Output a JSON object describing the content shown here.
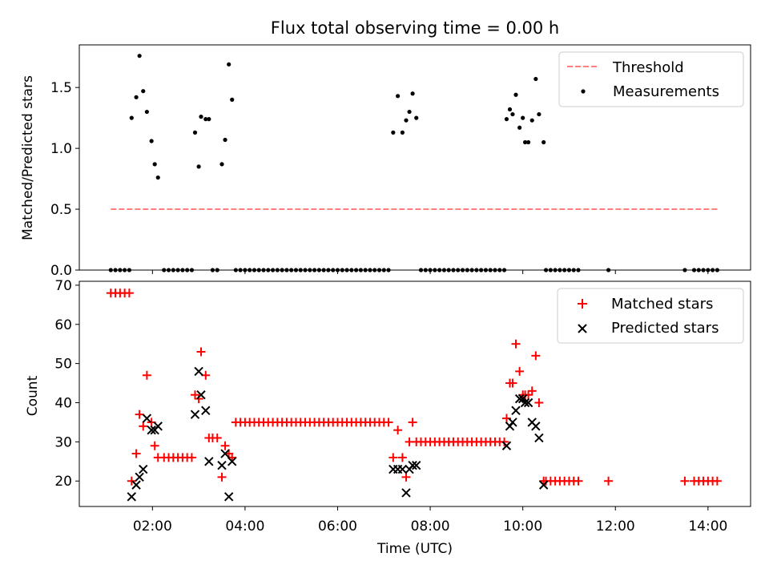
{
  "chart_data": [
    {
      "type": "scatter",
      "title": "Flux total observing time = 0.00 h",
      "ylabel": "Matched/Predicted stars",
      "xlim_hours": [
        0.42,
        14.92
      ],
      "ylim": [
        0,
        1.85
      ],
      "yticks": [
        0.0,
        0.5,
        1.0,
        1.5
      ],
      "yticklabels": [
        "0.0",
        "0.5",
        "1.0",
        "1.5"
      ],
      "legend_position": "top-right",
      "legend": {
        "threshold": "Threshold",
        "measurements": "Measurements"
      },
      "threshold": {
        "name": "Threshold",
        "color": "#ff8080",
        "x": [
          1.1,
          14.2
        ],
        "y": 0.5
      },
      "measurements": {
        "name": "Measurements",
        "color": "#000000",
        "points": [
          [
            1.1,
            0
          ],
          [
            1.2,
            0
          ],
          [
            1.3,
            0
          ],
          [
            1.4,
            0
          ],
          [
            1.5,
            0
          ],
          [
            1.55,
            1.25
          ],
          [
            1.65,
            1.42
          ],
          [
            1.72,
            1.76
          ],
          [
            1.8,
            1.47
          ],
          [
            1.88,
            1.3
          ],
          [
            1.98,
            1.06
          ],
          [
            2.05,
            0.87
          ],
          [
            2.12,
            0.76
          ],
          [
            2.25,
            0
          ],
          [
            2.35,
            0
          ],
          [
            2.45,
            0
          ],
          [
            2.55,
            0
          ],
          [
            2.65,
            0
          ],
          [
            2.75,
            0
          ],
          [
            2.85,
            0
          ],
          [
            2.92,
            1.13
          ],
          [
            3.0,
            0.85
          ],
          [
            3.05,
            1.26
          ],
          [
            3.15,
            1.24
          ],
          [
            3.22,
            1.24
          ],
          [
            3.3,
            0
          ],
          [
            3.4,
            0
          ],
          [
            3.5,
            0.87
          ],
          [
            3.57,
            1.07
          ],
          [
            3.65,
            1.69
          ],
          [
            3.72,
            1.4
          ],
          [
            3.8,
            0
          ],
          [
            3.9,
            0
          ],
          [
            4.0,
            0
          ],
          [
            4.1,
            0
          ],
          [
            4.2,
            0
          ],
          [
            4.3,
            0
          ],
          [
            4.4,
            0
          ],
          [
            4.5,
            0
          ],
          [
            4.6,
            0
          ],
          [
            4.7,
            0
          ],
          [
            4.8,
            0
          ],
          [
            4.9,
            0
          ],
          [
            5.0,
            0
          ],
          [
            5.1,
            0
          ],
          [
            5.2,
            0
          ],
          [
            5.3,
            0
          ],
          [
            5.4,
            0
          ],
          [
            5.5,
            0
          ],
          [
            5.6,
            0
          ],
          [
            5.7,
            0
          ],
          [
            5.8,
            0
          ],
          [
            5.9,
            0
          ],
          [
            6.0,
            0
          ],
          [
            6.1,
            0
          ],
          [
            6.2,
            0
          ],
          [
            6.3,
            0
          ],
          [
            6.4,
            0
          ],
          [
            6.5,
            0
          ],
          [
            6.6,
            0
          ],
          [
            6.7,
            0
          ],
          [
            6.8,
            0
          ],
          [
            6.9,
            0
          ],
          [
            7.0,
            0
          ],
          [
            7.1,
            0
          ],
          [
            7.2,
            1.13
          ],
          [
            7.3,
            1.43
          ],
          [
            7.4,
            1.13
          ],
          [
            7.48,
            1.23
          ],
          [
            7.55,
            1.3
          ],
          [
            7.62,
            1.45
          ],
          [
            7.7,
            1.25
          ],
          [
            7.8,
            0
          ],
          [
            7.9,
            0
          ],
          [
            8.0,
            0
          ],
          [
            8.1,
            0
          ],
          [
            8.2,
            0
          ],
          [
            8.3,
            0
          ],
          [
            8.4,
            0
          ],
          [
            8.5,
            0
          ],
          [
            8.6,
            0
          ],
          [
            8.7,
            0
          ],
          [
            8.8,
            0
          ],
          [
            8.9,
            0
          ],
          [
            9.0,
            0
          ],
          [
            9.1,
            0
          ],
          [
            9.2,
            0
          ],
          [
            9.3,
            0
          ],
          [
            9.4,
            0
          ],
          [
            9.5,
            0
          ],
          [
            9.6,
            0
          ],
          [
            9.65,
            1.24
          ],
          [
            9.72,
            1.32
          ],
          [
            9.78,
            1.28
          ],
          [
            9.85,
            1.44
          ],
          [
            9.93,
            1.17
          ],
          [
            10.0,
            1.25
          ],
          [
            10.05,
            1.05
          ],
          [
            10.12,
            1.05
          ],
          [
            10.2,
            1.23
          ],
          [
            10.28,
            1.57
          ],
          [
            10.35,
            1.28
          ],
          [
            10.45,
            1.05
          ],
          [
            10.5,
            0
          ],
          [
            10.6,
            0
          ],
          [
            10.7,
            0
          ],
          [
            10.8,
            0
          ],
          [
            10.9,
            0
          ],
          [
            11.0,
            0
          ],
          [
            11.1,
            0
          ],
          [
            11.2,
            0
          ],
          [
            11.85,
            0
          ],
          [
            13.5,
            0
          ],
          [
            13.7,
            0
          ],
          [
            13.8,
            0
          ],
          [
            13.9,
            0
          ],
          [
            14.0,
            0
          ],
          [
            14.1,
            0
          ],
          [
            14.2,
            0
          ]
        ]
      }
    },
    {
      "type": "scatter",
      "xlabel": "Time (UTC)",
      "ylabel": "Count",
      "xlim_hours": [
        0.42,
        14.92
      ],
      "ylim": [
        13.5,
        71
      ],
      "yticks": [
        20,
        30,
        40,
        50,
        60,
        70
      ],
      "yticklabels": [
        "20",
        "30",
        "40",
        "50",
        "60",
        "70"
      ],
      "xticks_hours": [
        2,
        4,
        6,
        8,
        10,
        12,
        14
      ],
      "xticklabels": [
        "02:00",
        "04:00",
        "06:00",
        "08:00",
        "10:00",
        "12:00",
        "14:00"
      ],
      "legend_position": "top-right",
      "legend": {
        "matched": "Matched stars",
        "predicted": "Predicted stars"
      },
      "matched": {
        "name": "Matched stars",
        "color": "#ff0000",
        "points": [
          [
            1.1,
            68
          ],
          [
            1.2,
            68
          ],
          [
            1.3,
            68
          ],
          [
            1.4,
            68
          ],
          [
            1.5,
            68
          ],
          [
            1.55,
            20
          ],
          [
            1.65,
            27
          ],
          [
            1.72,
            37
          ],
          [
            1.8,
            34
          ],
          [
            1.88,
            47
          ],
          [
            1.98,
            35
          ],
          [
            2.05,
            29
          ],
          [
            2.12,
            26
          ],
          [
            2.25,
            26
          ],
          [
            2.35,
            26
          ],
          [
            2.45,
            26
          ],
          [
            2.55,
            26
          ],
          [
            2.65,
            26
          ],
          [
            2.75,
            26
          ],
          [
            2.85,
            26
          ],
          [
            2.92,
            42
          ],
          [
            3.0,
            41
          ],
          [
            3.05,
            53
          ],
          [
            3.15,
            47
          ],
          [
            3.22,
            31
          ],
          [
            3.3,
            31
          ],
          [
            3.4,
            31
          ],
          [
            3.5,
            21
          ],
          [
            3.57,
            29
          ],
          [
            3.65,
            27
          ],
          [
            3.72,
            26
          ],
          [
            3.8,
            35
          ],
          [
            3.9,
            35
          ],
          [
            4.0,
            35
          ],
          [
            4.1,
            35
          ],
          [
            4.2,
            35
          ],
          [
            4.3,
            35
          ],
          [
            4.4,
            35
          ],
          [
            4.5,
            35
          ],
          [
            4.6,
            35
          ],
          [
            4.7,
            35
          ],
          [
            4.8,
            35
          ],
          [
            4.9,
            35
          ],
          [
            5.0,
            35
          ],
          [
            5.1,
            35
          ],
          [
            5.2,
            35
          ],
          [
            5.3,
            35
          ],
          [
            5.4,
            35
          ],
          [
            5.5,
            35
          ],
          [
            5.6,
            35
          ],
          [
            5.7,
            35
          ],
          [
            5.8,
            35
          ],
          [
            5.9,
            35
          ],
          [
            6.0,
            35
          ],
          [
            6.1,
            35
          ],
          [
            6.2,
            35
          ],
          [
            6.3,
            35
          ],
          [
            6.4,
            35
          ],
          [
            6.5,
            35
          ],
          [
            6.6,
            35
          ],
          [
            6.7,
            35
          ],
          [
            6.8,
            35
          ],
          [
            6.9,
            35
          ],
          [
            7.0,
            35
          ],
          [
            7.1,
            35
          ],
          [
            7.2,
            26
          ],
          [
            7.3,
            33
          ],
          [
            7.4,
            26
          ],
          [
            7.48,
            21
          ],
          [
            7.55,
            30
          ],
          [
            7.62,
            35
          ],
          [
            7.7,
            30
          ],
          [
            7.8,
            30
          ],
          [
            7.9,
            30
          ],
          [
            8.0,
            30
          ],
          [
            8.1,
            30
          ],
          [
            8.2,
            30
          ],
          [
            8.3,
            30
          ],
          [
            8.4,
            30
          ],
          [
            8.5,
            30
          ],
          [
            8.6,
            30
          ],
          [
            8.7,
            30
          ],
          [
            8.8,
            30
          ],
          [
            8.9,
            30
          ],
          [
            9.0,
            30
          ],
          [
            9.1,
            30
          ],
          [
            9.2,
            30
          ],
          [
            9.3,
            30
          ],
          [
            9.4,
            30
          ],
          [
            9.5,
            30
          ],
          [
            9.6,
            30
          ],
          [
            9.65,
            36
          ],
          [
            9.72,
            45
          ],
          [
            9.78,
            45
          ],
          [
            9.85,
            55
          ],
          [
            9.93,
            48
          ],
          [
            10.0,
            42
          ],
          [
            10.05,
            42
          ],
          [
            10.12,
            42
          ],
          [
            10.2,
            43
          ],
          [
            10.28,
            52
          ],
          [
            10.35,
            40
          ],
          [
            10.45,
            20
          ],
          [
            10.5,
            20
          ],
          [
            10.6,
            20
          ],
          [
            10.7,
            20
          ],
          [
            10.8,
            20
          ],
          [
            10.9,
            20
          ],
          [
            11.0,
            20
          ],
          [
            11.1,
            20
          ],
          [
            11.2,
            20
          ],
          [
            11.85,
            20
          ],
          [
            13.5,
            20
          ],
          [
            13.7,
            20
          ],
          [
            13.8,
            20
          ],
          [
            13.9,
            20
          ],
          [
            14.0,
            20
          ],
          [
            14.1,
            20
          ],
          [
            14.2,
            20
          ]
        ]
      },
      "predicted": {
        "name": "Predicted stars",
        "color": "#000000",
        "points": [
          [
            1.55,
            16
          ],
          [
            1.65,
            19
          ],
          [
            1.72,
            21
          ],
          [
            1.8,
            23
          ],
          [
            1.88,
            36
          ],
          [
            1.98,
            33
          ],
          [
            2.05,
            33
          ],
          [
            2.12,
            34
          ],
          [
            2.92,
            37
          ],
          [
            3.0,
            48
          ],
          [
            3.05,
            42
          ],
          [
            3.15,
            38
          ],
          [
            3.22,
            25
          ],
          [
            3.5,
            24
          ],
          [
            3.57,
            27
          ],
          [
            3.65,
            16
          ],
          [
            3.72,
            25
          ],
          [
            7.2,
            23
          ],
          [
            7.3,
            23
          ],
          [
            7.4,
            23
          ],
          [
            7.48,
            17
          ],
          [
            7.55,
            23
          ],
          [
            7.62,
            24
          ],
          [
            7.7,
            24
          ],
          [
            9.65,
            29
          ],
          [
            9.72,
            34
          ],
          [
            9.78,
            35
          ],
          [
            9.85,
            38
          ],
          [
            9.93,
            41
          ],
          [
            10.0,
            41
          ],
          [
            10.05,
            40
          ],
          [
            10.12,
            40
          ],
          [
            10.2,
            35
          ],
          [
            10.28,
            34
          ],
          [
            10.35,
            31
          ],
          [
            10.45,
            19
          ]
        ]
      }
    }
  ]
}
